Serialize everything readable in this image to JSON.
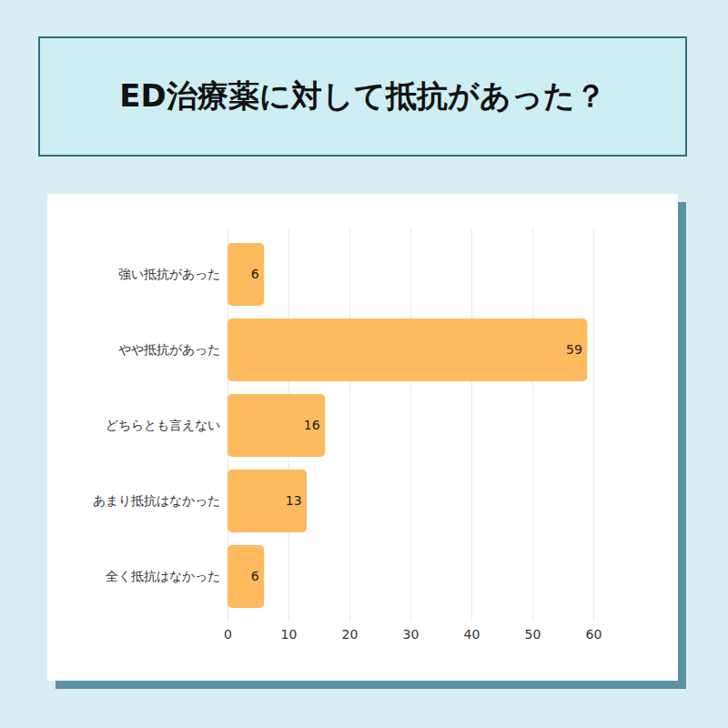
{
  "chart_data": {
    "type": "bar",
    "title": "ED治療薬に対して抵抗があった？",
    "orientation": "horizontal",
    "categories": [
      "強い抵抗があった",
      "やや抵抗があった",
      "どちらとも言えない",
      "あまり抵抗はなかった",
      "全く抵抗はなかった"
    ],
    "values": [
      6,
      59,
      16,
      13,
      6
    ],
    "color": "#fdba5f",
    "xlim": [
      0,
      60
    ],
    "xticks": [
      0,
      10,
      20,
      30,
      40,
      50,
      60
    ],
    "grid": true,
    "data_labels": true
  }
}
